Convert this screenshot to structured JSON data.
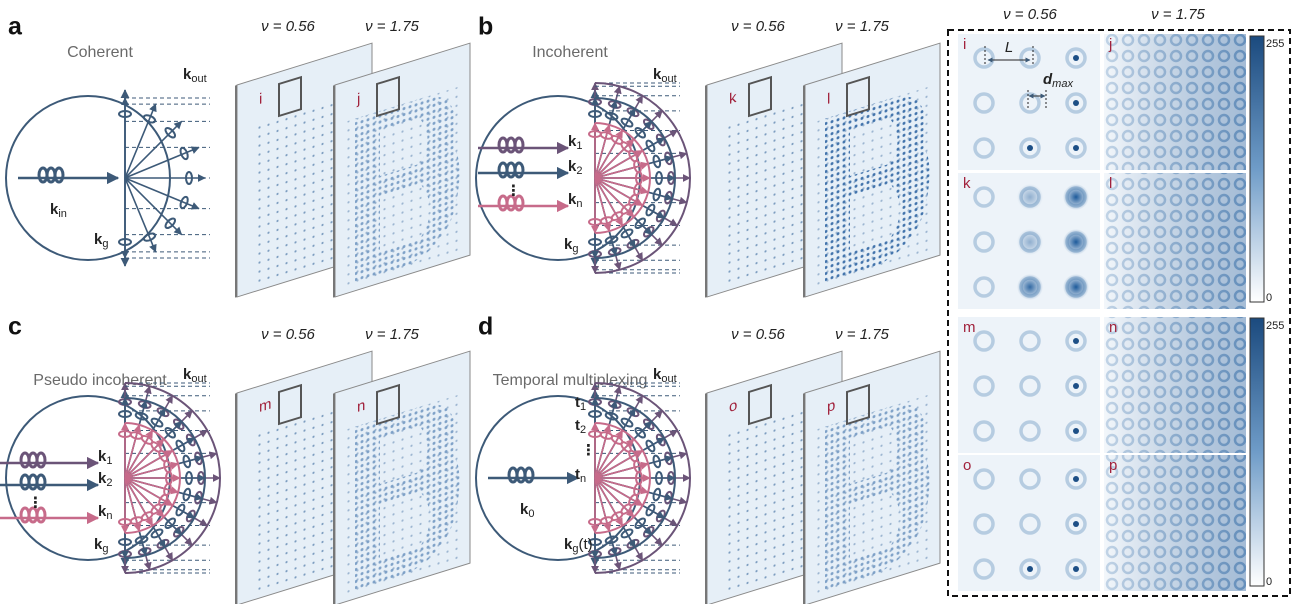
{
  "panels": [
    {
      "letter": "a",
      "title": "Coherent",
      "nu": [
        "ν = 0.56",
        "ν = 1.75"
      ],
      "plates": [
        "i",
        "j"
      ],
      "k_out": {
        "base": "k",
        "sub": "out"
      },
      "k_g": {
        "base": "k",
        "sub": "g"
      },
      "inputs": [
        {
          "base": "k",
          "sub": "in"
        }
      ]
    },
    {
      "letter": "b",
      "title": "Incoherent",
      "nu": [
        "ν = 0.56",
        "ν = 1.75"
      ],
      "plates": [
        "k",
        "l"
      ],
      "k_out": {
        "base": "k",
        "sub": "out"
      },
      "k_g": {
        "base": "k",
        "sub": "g"
      },
      "inputs": [
        {
          "base": "k",
          "sub": "1"
        },
        {
          "base": "k",
          "sub": "2"
        },
        {
          "base": "k",
          "sub": "n"
        }
      ],
      "ellipsis": "⋮"
    },
    {
      "letter": "c",
      "title": "Pseudo incoherent",
      "nu": [
        "ν = 0.56",
        "ν = 1.75"
      ],
      "plates": [
        "m",
        "n"
      ],
      "k_out": {
        "base": "k",
        "sub": "out"
      },
      "k_g": {
        "base": "k",
        "sub": "g"
      },
      "inputs": [
        {
          "base": "k",
          "sub": "1"
        },
        {
          "base": "k",
          "sub": "2"
        },
        {
          "base": "k",
          "sub": "n"
        }
      ],
      "ellipsis": "⋮"
    },
    {
      "letter": "d",
      "title": "Temporal multiplexing",
      "nu": [
        "ν = 0.56",
        "ν = 1.75"
      ],
      "plates": [
        "o",
        "p"
      ],
      "k_out": {
        "base": "k",
        "sub": "out"
      },
      "k_g": {
        "base": "k",
        "sub": "g",
        "suffix": "(t)"
      },
      "inputs": [
        {
          "base": "k",
          "sub": "0"
        }
      ],
      "times": [
        {
          "base": "t",
          "sub": "1"
        },
        {
          "base": "t",
          "sub": "2"
        },
        {
          "base": "t",
          "sub": "n"
        }
      ],
      "ellipsis": "⋮"
    }
  ],
  "zoom": {
    "headers": [
      "ν = 0.56",
      "ν = 1.75"
    ],
    "tiles": [
      "i",
      "j",
      "k",
      "l",
      "m",
      "n",
      "o",
      "p"
    ],
    "L": "L",
    "d": {
      "base": "d",
      "sub": "max"
    },
    "colorbars": [
      {
        "max": "255",
        "min": "0"
      },
      {
        "max": "255",
        "min": "0"
      }
    ]
  }
}
